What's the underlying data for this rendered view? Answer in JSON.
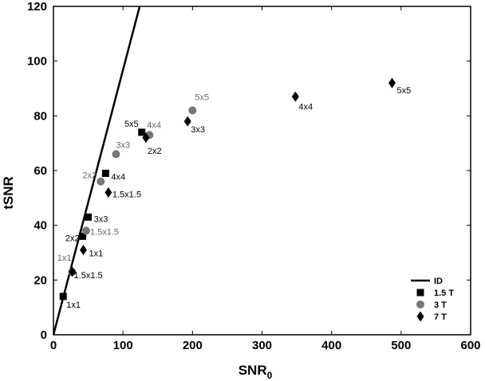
{
  "chart_data": {
    "type": "scatter",
    "xlabel": "SNR",
    "xlabel_sub": "0",
    "ylabel": "tSNR",
    "xlim": [
      0,
      600
    ],
    "ylim": [
      0,
      120
    ],
    "xticks": [
      0,
      100,
      200,
      300,
      400,
      500,
      600
    ],
    "yticks": [
      0,
      20,
      40,
      60,
      80,
      100,
      120
    ],
    "grid": false,
    "legend_position": "bottom-right",
    "identity_line": {
      "name": "ID",
      "x": [
        0,
        124
      ],
      "y": [
        0,
        120
      ]
    },
    "series": [
      {
        "name": "1.5 T",
        "marker": "square",
        "color": "#000000",
        "label_color": "#000000",
        "points": [
          {
            "x": 14,
            "y": 14,
            "label": "1x1"
          },
          {
            "x": 42,
            "y": 36,
            "label": "2x2"
          },
          {
            "x": 50,
            "y": 43,
            "label": "3x3"
          },
          {
            "x": 75,
            "y": 59,
            "label": "4x4"
          },
          {
            "x": 127,
            "y": 74,
            "label": "5x5"
          }
        ]
      },
      {
        "name": "3 T",
        "marker": "circle",
        "color": "#777777",
        "label_color": "#666666",
        "points": [
          {
            "x": 27,
            "y": 23,
            "label": "1x1"
          },
          {
            "x": 47,
            "y": 38,
            "label": "1.5x1.5"
          },
          {
            "x": 68,
            "y": 56,
            "label": "2x2"
          },
          {
            "x": 90,
            "y": 66,
            "label": "3x3"
          },
          {
            "x": 138,
            "y": 73,
            "label": "4x4"
          },
          {
            "x": 200,
            "y": 82,
            "label": "5x5"
          }
        ]
      },
      {
        "name": "7 T",
        "marker": "diamond",
        "color": "#000000",
        "label_color": "#000000",
        "points": [
          {
            "x": 27,
            "y": 23,
            "label": "1.5x1.5"
          },
          {
            "x": 43,
            "y": 31,
            "label": "1x1"
          },
          {
            "x": 79,
            "y": 52,
            "label": "1.5x1.5"
          },
          {
            "x": 133,
            "y": 72,
            "label": "2x2"
          },
          {
            "x": 193,
            "y": 78,
            "label": "3x3"
          },
          {
            "x": 348,
            "y": 87,
            "label": "4x4"
          },
          {
            "x": 487,
            "y": 92,
            "label": "5x5"
          }
        ]
      }
    ]
  }
}
